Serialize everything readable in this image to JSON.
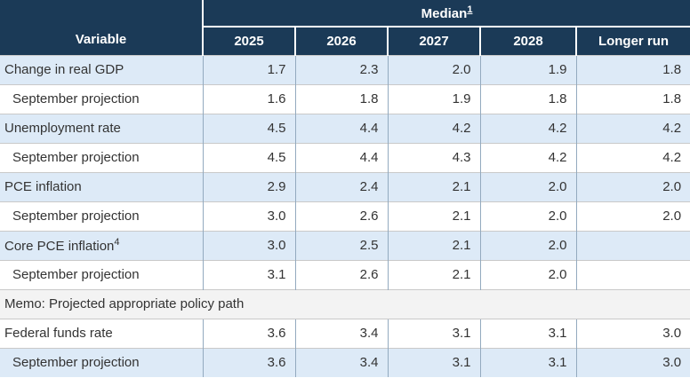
{
  "chart_data": {
    "type": "table",
    "corner_header": "Variable",
    "group_header": "Median",
    "group_header_footnote_ref": "1",
    "columns": [
      "2025",
      "2026",
      "2027",
      "2028",
      "Longer run"
    ],
    "rows": [
      {
        "variable": "Change in real GDP",
        "values": [
          "1.7",
          "2.3",
          "2.0",
          "1.9",
          "1.8"
        ]
      },
      {
        "variable": "September projection",
        "values": [
          "1.6",
          "1.8",
          "1.9",
          "1.8",
          "1.8"
        ]
      },
      {
        "variable": "Unemployment rate",
        "values": [
          "4.5",
          "4.4",
          "4.2",
          "4.2",
          "4.2"
        ]
      },
      {
        "variable": "September projection",
        "values": [
          "4.5",
          "4.4",
          "4.3",
          "4.2",
          "4.2"
        ]
      },
      {
        "variable": "PCE inflation",
        "values": [
          "2.9",
          "2.4",
          "2.1",
          "2.0",
          "2.0"
        ]
      },
      {
        "variable": "September projection",
        "values": [
          "3.0",
          "2.6",
          "2.1",
          "2.0",
          "2.0"
        ]
      },
      {
        "variable": "Core PCE inflation",
        "footnote_ref": "4",
        "values": [
          "3.0",
          "2.5",
          "2.1",
          "2.0",
          ""
        ]
      },
      {
        "variable": "September projection",
        "values": [
          "3.1",
          "2.6",
          "2.1",
          "2.0",
          ""
        ]
      },
      {
        "variable": "Federal funds rate",
        "values": [
          "3.6",
          "3.4",
          "3.1",
          "3.1",
          "3.0"
        ]
      },
      {
        "variable": "September projection",
        "values": [
          "3.6",
          "3.4",
          "3.1",
          "3.1",
          "3.0"
        ]
      }
    ],
    "memo_label": "Memo: Projected appropriate policy path",
    "colors": {
      "header_bg": "#1b3a57",
      "header_text": "#ffffff",
      "row_alt_bg": "#ddeaf7",
      "row_bg": "#ffffff",
      "memo_bg": "#f3f3f3",
      "body_text": "#333333",
      "column_divider": "#93aabf",
      "row_divider": "#c9c9c9"
    }
  }
}
